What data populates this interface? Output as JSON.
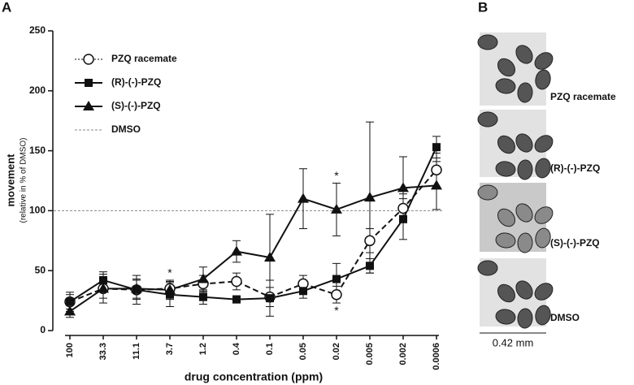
{
  "chart_data": {
    "type": "line",
    "panel_labels": [
      "A",
      "B"
    ],
    "y_label": "movement",
    "y_sublabel": "(relative in % of DMSO)",
    "x_label": "drug concentration (ppm)",
    "categories": [
      "100",
      "33.3",
      "11.1",
      "3.7",
      "1.2",
      "0.4",
      "0.1",
      "0.05",
      "0.02",
      "0.005",
      "0.002",
      "0.0006"
    ],
    "ylim": [
      0,
      250
    ],
    "yticks": [
      0,
      50,
      100,
      150,
      200,
      250
    ],
    "series": [
      {
        "name": "PZQ racemate",
        "color": "#111111",
        "marker": "circle-open",
        "dashed": true,
        "values": [
          24,
          35,
          34,
          35,
          39,
          41,
          28,
          39,
          30,
          75,
          102,
          134
        ],
        "errors": [
          8,
          8,
          8,
          6,
          7,
          7,
          8,
          7,
          7,
          10,
          12,
          14
        ]
      },
      {
        "name": "(R)-(-)-PZQ",
        "color": "#111111",
        "marker": "square",
        "dashed": false,
        "values": [
          24,
          42,
          34,
          30,
          28,
          26,
          27,
          33,
          43,
          54,
          93,
          153
        ],
        "errors": [
          6,
          7,
          12,
          10,
          6,
          3,
          15,
          6,
          13,
          6,
          17,
          9
        ]
      },
      {
        "name": "(S)-(-)-PZQ",
        "color": "#111111",
        "marker": "triangle",
        "dashed": false,
        "values": [
          16,
          35,
          35,
          34,
          43,
          66,
          61,
          110,
          101,
          111,
          119,
          121
        ],
        "errors": [
          5,
          12,
          8,
          8,
          10,
          9,
          36,
          25,
          22,
          63,
          26,
          20
        ]
      }
    ],
    "reference": {
      "name": "DMSO",
      "value": 100,
      "color": "#888888"
    },
    "annotations": [
      {
        "text": "*",
        "category": "3.7"
      },
      {
        "text": "*",
        "category": "0.02"
      },
      {
        "text": "*",
        "category": "0.02"
      }
    ],
    "images": [
      "PZQ racemate",
      "(R)-(-)-PZQ",
      "(S)-(-)-PZQ",
      "DMSO"
    ],
    "scale_bar": "0.42 mm"
  }
}
